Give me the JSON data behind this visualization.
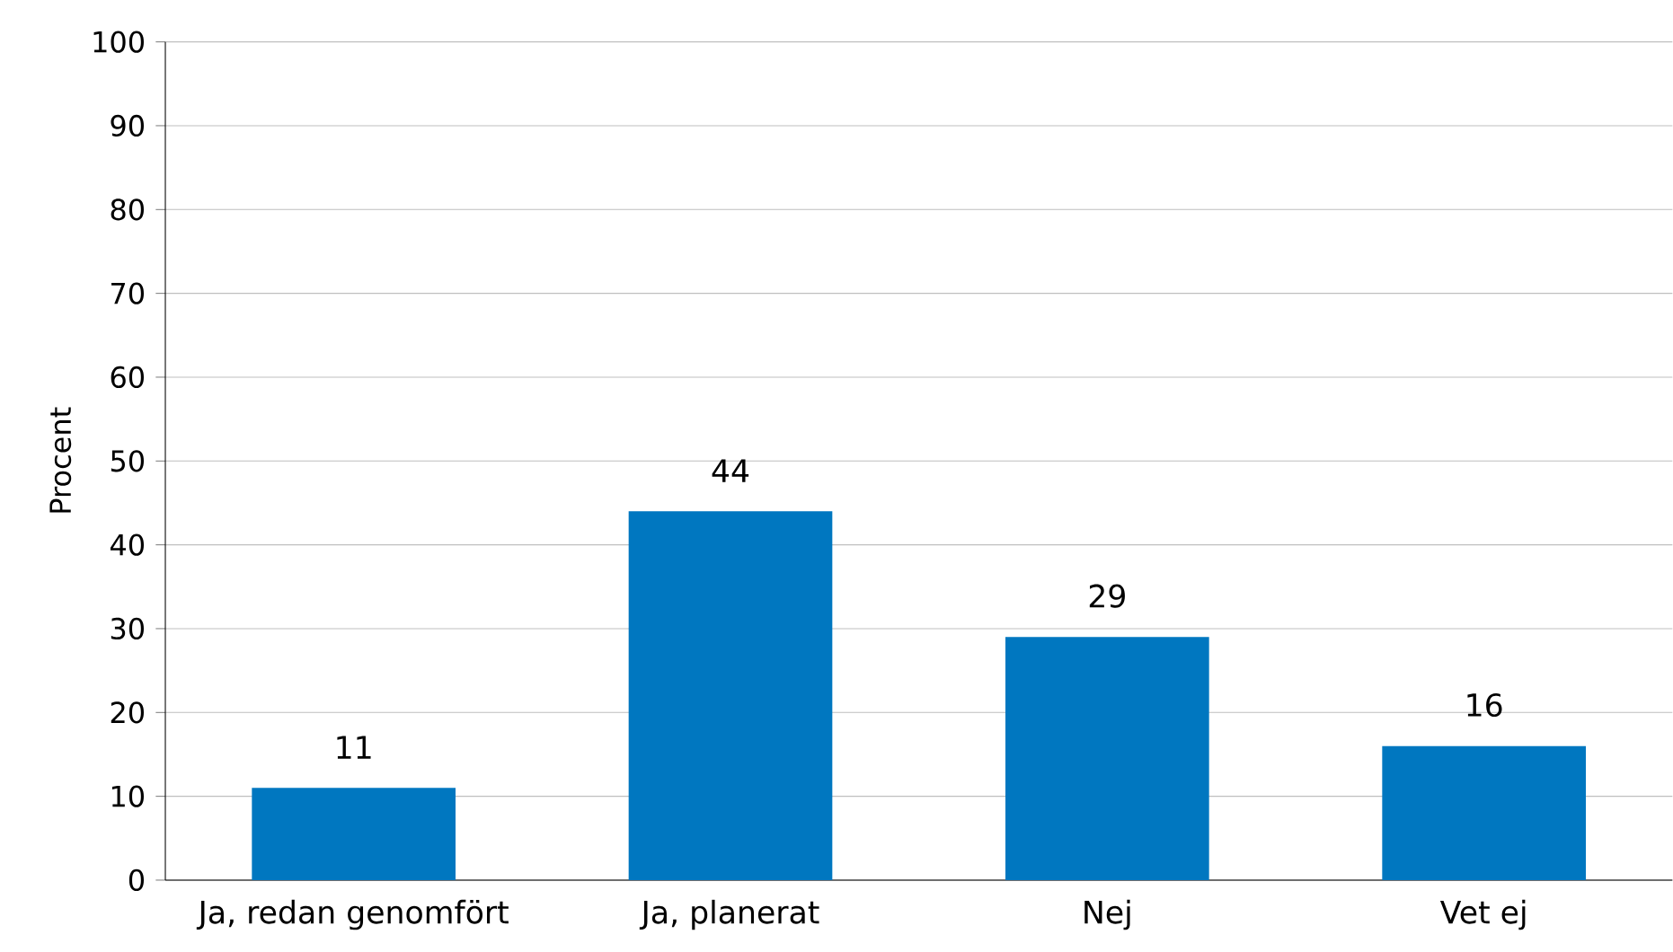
{
  "chart_data": {
    "type": "bar",
    "ylabel": "Procent",
    "categories": [
      "Ja, redan genomfört",
      "Ja, planerat",
      "Nej",
      "Vet ej"
    ],
    "values": [
      11,
      44,
      29,
      16
    ],
    "color": "#0077c0",
    "ylim": [
      0,
      100
    ],
    "yticks": [
      0,
      10,
      20,
      30,
      40,
      50,
      60,
      70,
      80,
      90,
      100
    ],
    "grid": "y",
    "data_labels": true
  }
}
